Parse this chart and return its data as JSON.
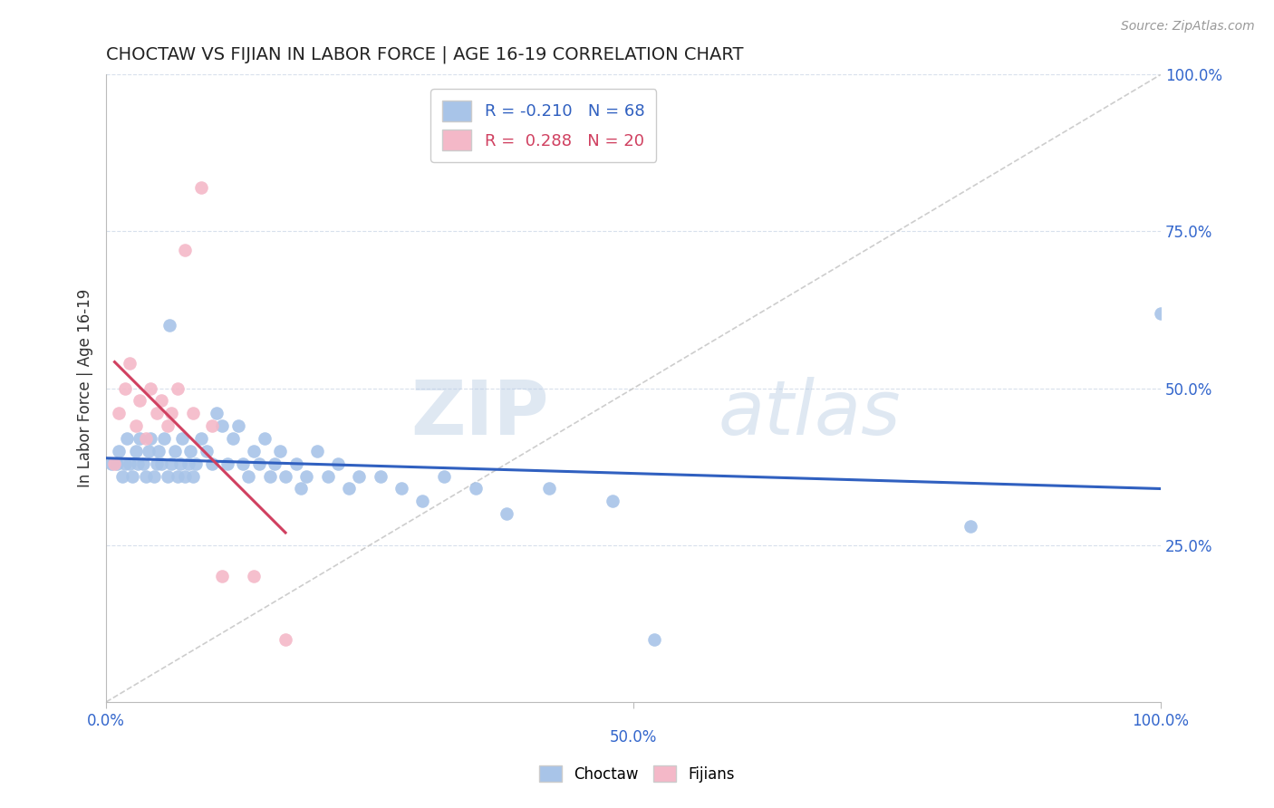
{
  "title": "CHOCTAW VS FIJIAN IN LABOR FORCE | AGE 16-19 CORRELATION CHART",
  "source_text": "Source: ZipAtlas.com",
  "ylabel": "In Labor Force | Age 16-19",
  "watermark_zip": "ZIP",
  "watermark_atlas": "atlas",
  "choctaw_color": "#a8c4e8",
  "fijian_color": "#f4b8c8",
  "choctaw_line_color": "#3060c0",
  "fijian_line_color": "#d04060",
  "diagonal_line_color": "#c8c8c8",
  "background_color": "#ffffff",
  "grid_color": "#d8e0ec",
  "legend_choctaw_label": "R = -0.210   N = 68",
  "legend_fijian_label": "R =  0.288   N = 20",
  "legend_choctaw_color": "#3060c0",
  "legend_fijian_color": "#d04060",
  "choctaw_x": [
    0.005,
    0.01,
    0.012,
    0.015,
    0.018,
    0.02,
    0.022,
    0.025,
    0.028,
    0.03,
    0.032,
    0.035,
    0.038,
    0.04,
    0.042,
    0.045,
    0.048,
    0.05,
    0.052,
    0.055,
    0.058,
    0.06,
    0.062,
    0.065,
    0.068,
    0.07,
    0.072,
    0.075,
    0.078,
    0.08,
    0.082,
    0.085,
    0.09,
    0.095,
    0.1,
    0.105,
    0.11,
    0.115,
    0.12,
    0.125,
    0.13,
    0.135,
    0.14,
    0.145,
    0.15,
    0.155,
    0.16,
    0.165,
    0.17,
    0.18,
    0.185,
    0.19,
    0.2,
    0.21,
    0.22,
    0.23,
    0.24,
    0.26,
    0.28,
    0.3,
    0.32,
    0.35,
    0.38,
    0.42,
    0.48,
    0.52,
    0.82,
    1.0
  ],
  "choctaw_y": [
    0.38,
    0.38,
    0.4,
    0.36,
    0.38,
    0.42,
    0.38,
    0.36,
    0.4,
    0.38,
    0.42,
    0.38,
    0.36,
    0.4,
    0.42,
    0.36,
    0.38,
    0.4,
    0.38,
    0.42,
    0.36,
    0.6,
    0.38,
    0.4,
    0.36,
    0.38,
    0.42,
    0.36,
    0.38,
    0.4,
    0.36,
    0.38,
    0.42,
    0.4,
    0.38,
    0.46,
    0.44,
    0.38,
    0.42,
    0.44,
    0.38,
    0.36,
    0.4,
    0.38,
    0.42,
    0.36,
    0.38,
    0.4,
    0.36,
    0.38,
    0.34,
    0.36,
    0.4,
    0.36,
    0.38,
    0.34,
    0.36,
    0.36,
    0.34,
    0.32,
    0.36,
    0.34,
    0.3,
    0.34,
    0.32,
    0.1,
    0.28,
    0.62
  ],
  "fijian_x": [
    0.008,
    0.012,
    0.018,
    0.022,
    0.028,
    0.032,
    0.038,
    0.042,
    0.048,
    0.052,
    0.058,
    0.062,
    0.068,
    0.075,
    0.082,
    0.09,
    0.1,
    0.11,
    0.14,
    0.17
  ],
  "fijian_y": [
    0.38,
    0.46,
    0.5,
    0.54,
    0.44,
    0.48,
    0.42,
    0.5,
    0.46,
    0.48,
    0.44,
    0.46,
    0.5,
    0.72,
    0.46,
    0.82,
    0.44,
    0.2,
    0.2,
    0.1
  ],
  "xlim": [
    0.0,
    1.0
  ],
  "ylim": [
    0.0,
    1.0
  ],
  "x_ticks": [
    0.0,
    0.5,
    1.0
  ],
  "x_tick_labels": [
    "0.0%",
    "50.0%",
    "100.0%"
  ],
  "y_ticks": [
    0.25,
    0.5,
    0.75,
    1.0
  ],
  "y_tick_labels": [
    "25.0%",
    "50.0%",
    "75.0%",
    "100.0%"
  ]
}
